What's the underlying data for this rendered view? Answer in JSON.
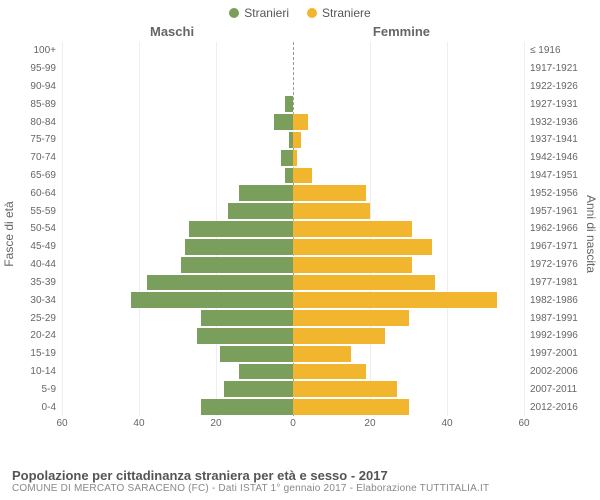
{
  "legend": {
    "male": {
      "label": "Stranieri",
      "color": "#7a9e5b"
    },
    "female": {
      "label": "Straniere",
      "color": "#f2b52e"
    }
  },
  "column_titles": {
    "male": "Maschi",
    "female": "Femmine"
  },
  "y_labels": {
    "left": "Fasce di età",
    "right": "Anni di nascita"
  },
  "x_axis": {
    "max": 60,
    "ticks": [
      60,
      40,
      20,
      0,
      20,
      40,
      60
    ]
  },
  "grid_color": "#eeeeee",
  "center_line_color": "#999999",
  "background_color": "#ffffff",
  "rows": [
    {
      "age": "100+",
      "year": "≤ 1916",
      "m": 0,
      "f": 0
    },
    {
      "age": "95-99",
      "year": "1917-1921",
      "m": 0,
      "f": 0
    },
    {
      "age": "90-94",
      "year": "1922-1926",
      "m": 0,
      "f": 0
    },
    {
      "age": "85-89",
      "year": "1927-1931",
      "m": 2,
      "f": 0
    },
    {
      "age": "80-84",
      "year": "1932-1936",
      "m": 5,
      "f": 4
    },
    {
      "age": "75-79",
      "year": "1937-1941",
      "m": 1,
      "f": 2
    },
    {
      "age": "70-74",
      "year": "1942-1946",
      "m": 3,
      "f": 1
    },
    {
      "age": "65-69",
      "year": "1947-1951",
      "m": 2,
      "f": 5
    },
    {
      "age": "60-64",
      "year": "1952-1956",
      "m": 14,
      "f": 19
    },
    {
      "age": "55-59",
      "year": "1957-1961",
      "m": 17,
      "f": 20
    },
    {
      "age": "50-54",
      "year": "1962-1966",
      "m": 27,
      "f": 31
    },
    {
      "age": "45-49",
      "year": "1967-1971",
      "m": 28,
      "f": 36
    },
    {
      "age": "40-44",
      "year": "1972-1976",
      "m": 29,
      "f": 31
    },
    {
      "age": "35-39",
      "year": "1977-1981",
      "m": 38,
      "f": 37
    },
    {
      "age": "30-34",
      "year": "1982-1986",
      "m": 42,
      "f": 53
    },
    {
      "age": "25-29",
      "year": "1987-1991",
      "m": 24,
      "f": 30
    },
    {
      "age": "20-24",
      "year": "1992-1996",
      "m": 25,
      "f": 24
    },
    {
      "age": "15-19",
      "year": "1997-2001",
      "m": 19,
      "f": 15
    },
    {
      "age": "10-14",
      "year": "2002-2006",
      "m": 14,
      "f": 19
    },
    {
      "age": "5-9",
      "year": "2007-2011",
      "m": 18,
      "f": 27
    },
    {
      "age": "0-4",
      "year": "2012-2016",
      "m": 24,
      "f": 30
    }
  ],
  "footer": {
    "title": "Popolazione per cittadinanza straniera per età e sesso - 2017",
    "sub": "COMUNE DI MERCATO SARACENO (FC) - Dati ISTAT 1° gennaio 2017 - Elaborazione TUTTITALIA.IT"
  }
}
